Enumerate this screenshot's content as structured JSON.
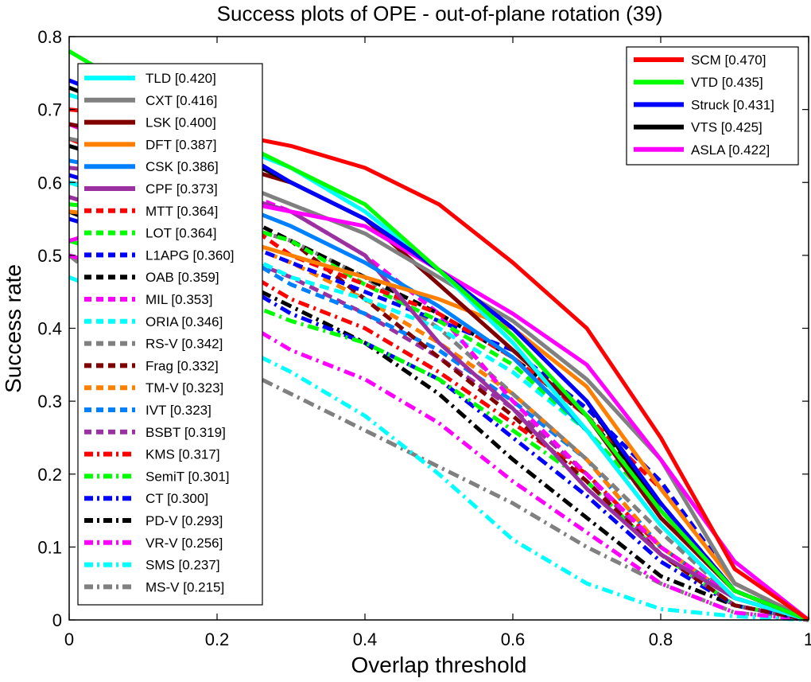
{
  "chart_data": {
    "type": "line",
    "title": "Success plots of OPE - out-of-plane rotation (39)",
    "xlabel": "Overlap threshold",
    "ylabel": "Success rate",
    "xlim": [
      0,
      1
    ],
    "ylim": [
      0,
      0.8
    ],
    "xticks": [
      "0",
      "0.2",
      "0.4",
      "0.6",
      "0.8",
      "1"
    ],
    "yticks": [
      "0",
      "0.1",
      "0.2",
      "0.3",
      "0.4",
      "0.5",
      "0.6",
      "0.7",
      "0.8"
    ],
    "x": [
      0,
      0.1,
      0.2,
      0.3,
      0.4,
      0.5,
      0.6,
      0.7,
      0.8,
      0.9,
      1.0
    ],
    "grid": false,
    "legend_top": {
      "placement": "top-right",
      "entries": [
        "SCM [0.470]",
        "VTD [0.435]",
        "Struck [0.431]",
        "VTS [0.425]",
        "ASLA [0.422]"
      ]
    },
    "legend_left": {
      "placement": "top-left",
      "entries": [
        "TLD [0.420]",
        "CXT [0.416]",
        "LSK [0.400]",
        "DFT [0.387]",
        "CSK [0.386]",
        "CPF [0.373]",
        "MTT [0.364]",
        "LOT [0.364]",
        "L1APG [0.360]",
        "OAB [0.359]",
        "MIL [0.353]",
        "ORIA [0.346]",
        "RS-V [0.342]",
        "Frag [0.332]",
        "TM-V [0.323]",
        "IVT [0.323]",
        "BSBT [0.319]",
        "KMS [0.317]",
        "SemiT [0.301]",
        "CT [0.300]",
        "PD-V [0.293]",
        "VR-V [0.256]",
        "SMS [0.237]",
        "MS-V [0.215]"
      ]
    },
    "series": [
      {
        "name": "SCM [0.470]",
        "color": "#ff0000",
        "style": "solid",
        "values": [
          0.7,
          0.69,
          0.67,
          0.65,
          0.62,
          0.57,
          0.49,
          0.4,
          0.25,
          0.07,
          0.0
        ]
      },
      {
        "name": "VTD [0.435]",
        "color": "#00ff00",
        "style": "solid",
        "values": [
          0.78,
          0.72,
          0.67,
          0.62,
          0.57,
          0.48,
          0.39,
          0.28,
          0.15,
          0.04,
          0.0
        ]
      },
      {
        "name": "Struck [0.431]",
        "color": "#0000ff",
        "style": "solid",
        "values": [
          0.74,
          0.7,
          0.66,
          0.6,
          0.55,
          0.48,
          0.4,
          0.3,
          0.16,
          0.04,
          0.0
        ]
      },
      {
        "name": "VTS [0.425]",
        "color": "#000000",
        "style": "solid",
        "values": [
          0.73,
          0.69,
          0.65,
          0.6,
          0.55,
          0.48,
          0.4,
          0.3,
          0.15,
          0.04,
          0.0
        ]
      },
      {
        "name": "ASLA [0.422]",
        "color": "#ff00ff",
        "style": "solid",
        "values": [
          0.52,
          0.55,
          0.58,
          0.56,
          0.54,
          0.48,
          0.42,
          0.35,
          0.22,
          0.08,
          0.0
        ]
      },
      {
        "name": "TLD [0.420]",
        "color": "#00ffff",
        "style": "solid",
        "values": [
          0.72,
          0.69,
          0.66,
          0.62,
          0.56,
          0.48,
          0.38,
          0.26,
          0.13,
          0.03,
          0.0
        ]
      },
      {
        "name": "CXT [0.416]",
        "color": "#808080",
        "style": "solid",
        "values": [
          0.66,
          0.64,
          0.61,
          0.57,
          0.53,
          0.47,
          0.41,
          0.33,
          0.22,
          0.05,
          0.0
        ]
      },
      {
        "name": "LSK [0.400]",
        "color": "#800000",
        "style": "solid",
        "values": [
          0.68,
          0.66,
          0.63,
          0.6,
          0.55,
          0.46,
          0.37,
          0.28,
          0.14,
          0.04,
          0.0
        ]
      },
      {
        "name": "DFT [0.387]",
        "color": "#ff8000",
        "style": "solid",
        "values": [
          0.56,
          0.55,
          0.53,
          0.5,
          0.47,
          0.44,
          0.4,
          0.32,
          0.18,
          0.05,
          0.0
        ]
      },
      {
        "name": "CSK [0.386]",
        "color": "#0080ff",
        "style": "solid",
        "values": [
          0.63,
          0.61,
          0.58,
          0.54,
          0.49,
          0.43,
          0.36,
          0.26,
          0.13,
          0.03,
          0.0
        ]
      },
      {
        "name": "CPF [0.373]",
        "color": "#9b30a0",
        "style": "solid",
        "values": [
          0.62,
          0.61,
          0.59,
          0.56,
          0.5,
          0.38,
          0.29,
          0.18,
          0.09,
          0.03,
          0.0
        ]
      },
      {
        "name": "MTT [0.364]",
        "color": "#ff0000",
        "style": "dash",
        "values": [
          0.66,
          0.62,
          0.57,
          0.5,
          0.46,
          0.42,
          0.36,
          0.28,
          0.18,
          0.05,
          0.0
        ]
      },
      {
        "name": "LOT [0.364]",
        "color": "#00ff00",
        "style": "dash",
        "values": [
          0.57,
          0.56,
          0.55,
          0.52,
          0.46,
          0.41,
          0.35,
          0.26,
          0.15,
          0.04,
          0.0
        ]
      },
      {
        "name": "L1APG [0.360]",
        "color": "#0000ff",
        "style": "dash",
        "values": [
          0.61,
          0.58,
          0.53,
          0.49,
          0.45,
          0.41,
          0.37,
          0.29,
          0.19,
          0.05,
          0.0
        ]
      },
      {
        "name": "OAB [0.359]",
        "color": "#000000",
        "style": "dash",
        "values": [
          0.65,
          0.62,
          0.57,
          0.52,
          0.47,
          0.42,
          0.36,
          0.28,
          0.16,
          0.04,
          0.0
        ]
      },
      {
        "name": "MIL [0.353]",
        "color": "#ff00ff",
        "style": "dash",
        "values": [
          0.68,
          0.64,
          0.6,
          0.56,
          0.5,
          0.42,
          0.3,
          0.2,
          0.1,
          0.03,
          0.0
        ]
      },
      {
        "name": "ORIA [0.346]",
        "color": "#00ffff",
        "style": "dash",
        "values": [
          0.6,
          0.57,
          0.52,
          0.47,
          0.44,
          0.4,
          0.34,
          0.26,
          0.15,
          0.04,
          0.0
        ]
      },
      {
        "name": "RS-V [0.342]",
        "color": "#808080",
        "style": "dash",
        "values": [
          0.6,
          0.58,
          0.55,
          0.52,
          0.47,
          0.4,
          0.31,
          0.22,
          0.12,
          0.03,
          0.0
        ]
      },
      {
        "name": "Frag [0.332]",
        "color": "#800000",
        "style": "dash",
        "values": [
          0.6,
          0.58,
          0.55,
          0.52,
          0.44,
          0.36,
          0.28,
          0.19,
          0.09,
          0.02,
          0.0
        ]
      },
      {
        "name": "TM-V [0.323]",
        "color": "#ff8000",
        "style": "dash",
        "values": [
          0.6,
          0.57,
          0.53,
          0.49,
          0.44,
          0.38,
          0.31,
          0.22,
          0.1,
          0.03,
          0.0
        ]
      },
      {
        "name": "IVT [0.323]",
        "color": "#0080ff",
        "style": "dash",
        "values": [
          0.6,
          0.57,
          0.52,
          0.46,
          0.42,
          0.37,
          0.3,
          0.22,
          0.1,
          0.03,
          0.0
        ]
      },
      {
        "name": "BSBT [0.319]",
        "color": "#9b30a0",
        "style": "dash",
        "values": [
          0.58,
          0.55,
          0.51,
          0.47,
          0.42,
          0.36,
          0.29,
          0.2,
          0.09,
          0.02,
          0.0
        ]
      },
      {
        "name": "KMS [0.317]",
        "color": "#ff0000",
        "style": "dashdot",
        "values": [
          0.58,
          0.55,
          0.5,
          0.44,
          0.4,
          0.34,
          0.27,
          0.2,
          0.1,
          0.03,
          0.0
        ]
      },
      {
        "name": "SemiT [0.301]",
        "color": "#00ff00",
        "style": "dashdot",
        "values": [
          0.52,
          0.49,
          0.45,
          0.41,
          0.38,
          0.33,
          0.26,
          0.19,
          0.09,
          0.02,
          0.0
        ]
      },
      {
        "name": "CT [0.300]",
        "color": "#0000ff",
        "style": "dashdot",
        "values": [
          0.55,
          0.52,
          0.48,
          0.42,
          0.38,
          0.33,
          0.25,
          0.17,
          0.08,
          0.02,
          0.0
        ]
      },
      {
        "name": "PD-V [0.293]",
        "color": "#000000",
        "style": "dashdot",
        "values": [
          0.56,
          0.52,
          0.48,
          0.43,
          0.38,
          0.31,
          0.22,
          0.14,
          0.06,
          0.02,
          0.0
        ]
      },
      {
        "name": "VR-V [0.256]",
        "color": "#ff00ff",
        "style": "dashdot",
        "values": [
          0.5,
          0.47,
          0.43,
          0.37,
          0.33,
          0.27,
          0.19,
          0.12,
          0.05,
          0.01,
          0.0
        ]
      },
      {
        "name": "SMS [0.237]",
        "color": "#00ffff",
        "style": "dashdot",
        "values": [
          0.47,
          0.43,
          0.39,
          0.34,
          0.28,
          0.2,
          0.11,
          0.05,
          0.015,
          0.005,
          0.0
        ]
      },
      {
        "name": "MS-V [0.215]",
        "color": "#808080",
        "style": "dashdot",
        "values": [
          0.5,
          0.42,
          0.36,
          0.31,
          0.26,
          0.21,
          0.16,
          0.1,
          0.05,
          0.01,
          0.0
        ]
      }
    ]
  }
}
